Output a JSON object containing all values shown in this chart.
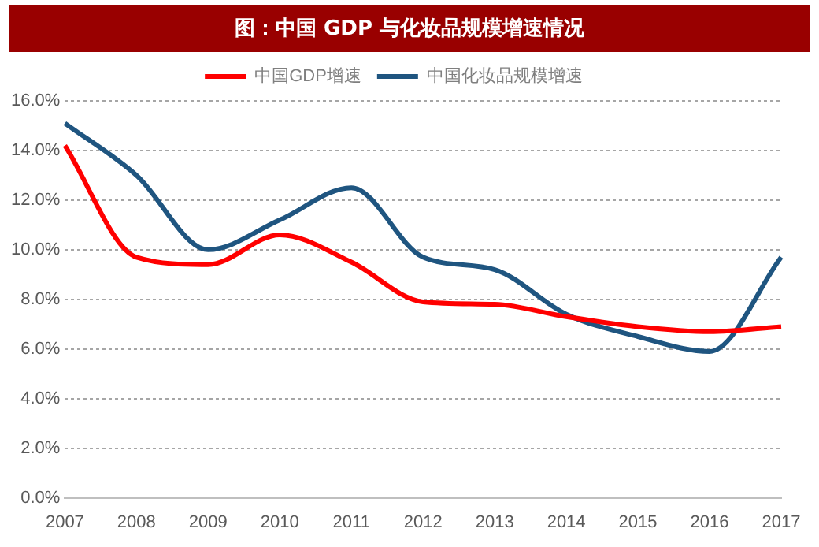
{
  "chart_data": {
    "type": "line",
    "title": "图：中国 GDP 与化妆品规模增速情况",
    "categories": [
      "2007",
      "2008",
      "2009",
      "2010",
      "2011",
      "2012",
      "2013",
      "2014",
      "2015",
      "2016",
      "2017"
    ],
    "series": [
      {
        "name": "中国GDP增速",
        "color": "#ff0000",
        "values": [
          14.2,
          9.7,
          9.4,
          10.6,
          9.5,
          7.9,
          7.8,
          7.3,
          6.9,
          6.7,
          6.9
        ]
      },
      {
        "name": "中国化妆品规模增速",
        "color": "#1f5580",
        "values": [
          15.1,
          13.0,
          10.0,
          11.2,
          12.5,
          9.7,
          9.2,
          7.4,
          6.5,
          5.9,
          9.7
        ]
      }
    ],
    "ylim": [
      0,
      16
    ],
    "yticks": [
      {
        "value": 0,
        "label": "0.0%"
      },
      {
        "value": 2,
        "label": "2.0%"
      },
      {
        "value": 4,
        "label": "4.0%"
      },
      {
        "value": 6,
        "label": "6.0%"
      },
      {
        "value": 8,
        "label": "8.0%"
      },
      {
        "value": 10,
        "label": "10.0%"
      },
      {
        "value": 12,
        "label": "12.0%"
      },
      {
        "value": 14,
        "label": "14.0%"
      },
      {
        "value": 16,
        "label": "16.0%"
      }
    ],
    "grid": "y",
    "legend": "top",
    "marker": "none",
    "line_style": "solid"
  }
}
